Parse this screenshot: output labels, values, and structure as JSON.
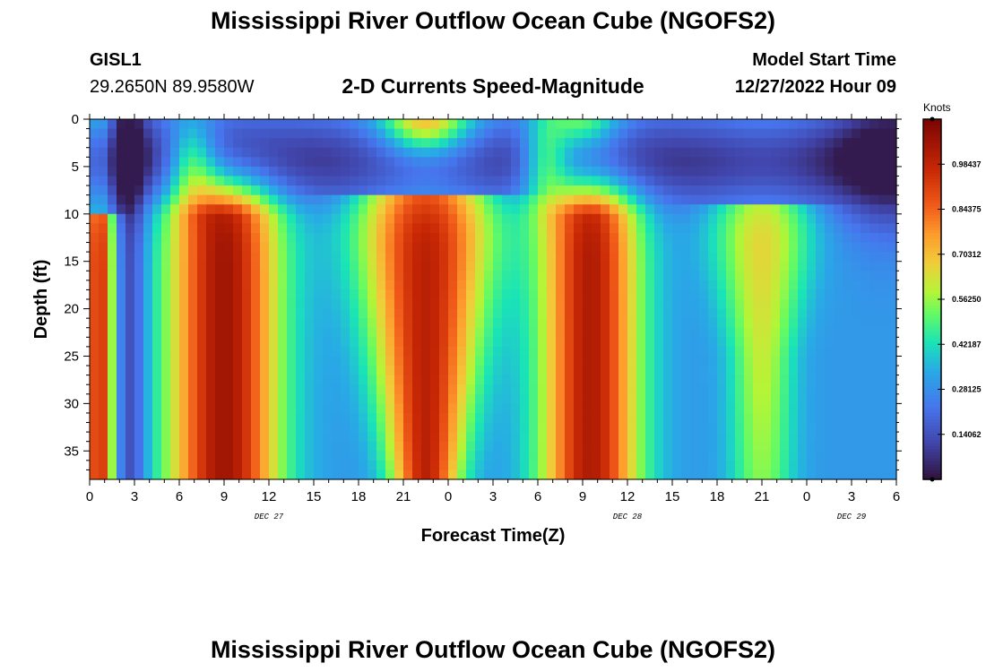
{
  "page": {
    "title": "Mississippi River Outflow Ocean Cube (NGOFS2)",
    "station": "GISL1",
    "coords": "29.2650N  89.9580W",
    "subtitle": "2-D Currents Speed-Magnitude",
    "model_label": "Model Start Time",
    "model_time": "12/27/2022 Hour 09",
    "bottom_title": "Mississippi River Outflow Ocean Cube (NGOFS2)"
  },
  "chart_data": {
    "type": "heatmap",
    "title": "2-D Currents Speed-Magnitude",
    "xlabel": "Forecast Time(Z)",
    "ylabel": "Depth (ft)",
    "x_tick_labels": [
      "0",
      "3",
      "6",
      "9",
      "12",
      "15",
      "18",
      "21",
      "0",
      "3",
      "6",
      "9",
      "12",
      "15",
      "18",
      "21",
      "0",
      "3",
      "6"
    ],
    "x_range_hours": [
      0,
      54
    ],
    "day_labels": [
      {
        "label": "DEC 27",
        "hour": 12
      },
      {
        "label": "DEC 28",
        "hour": 36
      },
      {
        "label": "DEC 29",
        "hour": 51
      }
    ],
    "y_ticks": [
      0,
      5,
      10,
      15,
      20,
      25,
      30,
      35
    ],
    "y_range": [
      0,
      38
    ],
    "y_inverted": true,
    "colorbar": {
      "unit": "Knots",
      "range": [
        0.0,
        1.125
      ],
      "tick_labels": [
        "0.98437",
        "0.84375",
        "0.70312",
        "0.56250",
        "0.42187",
        "0.28125",
        "0.14062"
      ],
      "tick_values": [
        0.984375,
        0.84375,
        0.703125,
        0.5625,
        0.421875,
        0.28125,
        0.140625
      ]
    },
    "grid": false,
    "speed_peaks": [
      {
        "hour": 0.5,
        "value": 0.72
      },
      {
        "hour": 9,
        "value": 1.08
      },
      {
        "hour": 22.5,
        "value": 1.0
      },
      {
        "hour": 33.5,
        "value": 1.02
      },
      {
        "hour": 45,
        "value": 0.6
      }
    ],
    "speed_minima": [
      {
        "hour": 2.5,
        "value": 0.08
      },
      {
        "hour": 6,
        "value": 0.45
      },
      {
        "hour": 15,
        "value": 0.28
      },
      {
        "hour": 31.5,
        "value": 0.35
      },
      {
        "hour": 54,
        "value": 0.1
      }
    ]
  }
}
